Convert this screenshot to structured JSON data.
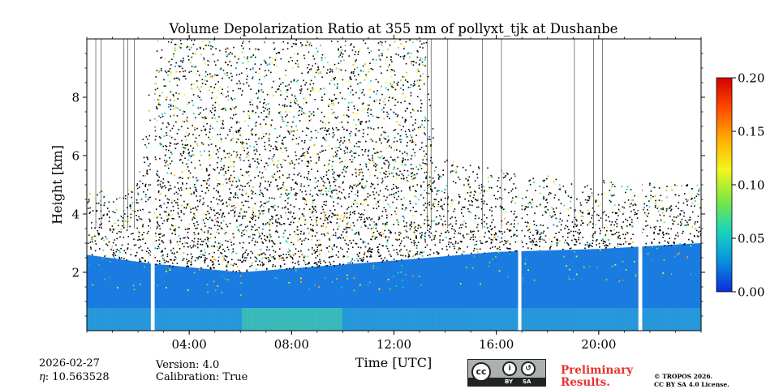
{
  "chart_data": {
    "type": "heatmap",
    "title": "Volume Depolarization Ratio at 355 nm of pollyxt_tjk at Dushanbe",
    "xlabel": "Time [UTC]",
    "ylabel": "Height [km]",
    "xlim_hours": [
      0,
      24
    ],
    "ylim_km": [
      0,
      10
    ],
    "x_major_ticks": [
      {
        "value": 4,
        "label": "04:00"
      },
      {
        "value": 8,
        "label": "08:00"
      },
      {
        "value": 12,
        "label": "12:00"
      },
      {
        "value": 16,
        "label": "16:00"
      },
      {
        "value": 20,
        "label": "20:00"
      }
    ],
    "x_minor_tick_interval_hours": 1,
    "y_major_ticks": [
      {
        "value": 2,
        "label": "2"
      },
      {
        "value": 4,
        "label": "4"
      },
      {
        "value": 6,
        "label": "6"
      },
      {
        "value": 8,
        "label": "8"
      }
    ],
    "y_minor_tick_interval_km": 0.5,
    "colorbar": {
      "min": 0.0,
      "max": 0.2,
      "ticks": [
        {
          "value": 0.0,
          "label": "0.00"
        },
        {
          "value": 0.05,
          "label": "0.05"
        },
        {
          "value": 0.1,
          "label": "0.10"
        },
        {
          "value": 0.15,
          "label": "0.15"
        },
        {
          "value": 0.2,
          "label": "0.20"
        }
      ],
      "colormap": [
        "#0a2bd8",
        "#0a8ee0",
        "#18d4c0",
        "#7de840",
        "#f5f51e",
        "#ffb000",
        "#ff4a00",
        "#d40000"
      ]
    },
    "data_gaps_hours": [
      [
        2.5,
        2.65
      ],
      [
        16.85,
        16.98
      ],
      [
        21.55,
        21.7
      ]
    ],
    "profile_gaps_hours": [
      0.35,
      0.55,
      1.45,
      1.6,
      1.85,
      13.3,
      13.45,
      14.1,
      15.45,
      16.2,
      19.05,
      19.8,
      20.15
    ],
    "aerosol_layer": {
      "description_values": "boundary layer depolarization ~0.02-0.06",
      "layer_top_km": [
        [
          0,
          2.6
        ],
        [
          2.5,
          2.3
        ],
        [
          6,
          2.0
        ],
        [
          9,
          2.2
        ],
        [
          12,
          2.4
        ],
        [
          16,
          2.7
        ],
        [
          20,
          2.8
        ],
        [
          24,
          3.0
        ]
      ],
      "noise_top_km": [
        [
          0,
          4.8
        ],
        [
          1.9,
          5.0
        ],
        [
          2.7,
          10.0
        ],
        [
          13.3,
          10.0
        ],
        [
          13.6,
          6.0
        ],
        [
          17,
          5.4
        ],
        [
          20,
          5.2
        ],
        [
          24,
          5.0
        ]
      ]
    }
  },
  "meta": {
    "date": "2026-02-27",
    "eta_label": "η",
    "eta_value": ": 10.563528",
    "version": "Version: 4.0",
    "calibration": "Calibration: True"
  },
  "license": {
    "prelim_line1": "Preliminary",
    "prelim_line2": "Results.",
    "copyright_line1": "© TROPOS 2026.",
    "copyright_line2": "CC BY SA 4.0 License.",
    "badge_cc": "cc",
    "badge_by": "BY",
    "badge_sa": "SA"
  }
}
